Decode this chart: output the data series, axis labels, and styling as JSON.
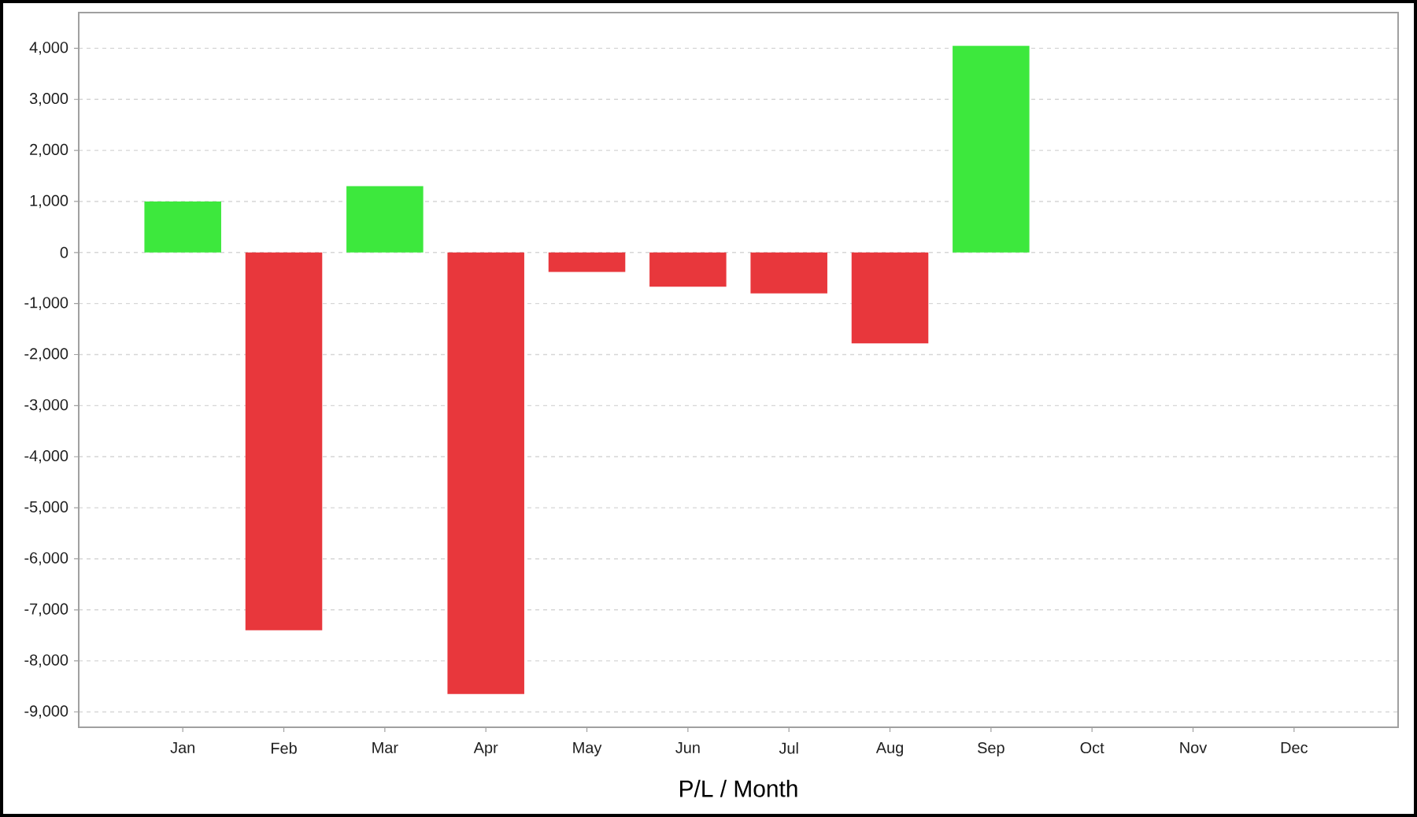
{
  "chart_data": {
    "type": "bar",
    "xlabel": "P/L / Month",
    "categories": [
      "Jan",
      "Feb",
      "Mar",
      "Apr",
      "May",
      "Jun",
      "Jul",
      "Aug",
      "Sep",
      "Oct",
      "Nov",
      "Dec"
    ],
    "values": [
      1000,
      -7400,
      1300,
      -8650,
      -380,
      -670,
      -800,
      -1780,
      4050,
      null,
      null,
      null
    ],
    "colors": [
      "#3de83d",
      "#e8373c",
      "#3de83d",
      "#e8373c",
      "#e8373c",
      "#e8373c",
      "#e8373c",
      "#e8373c",
      "#3de83d",
      null,
      null,
      null
    ],
    "ylim": [
      -9300,
      4700
    ],
    "yticks": [
      {
        "value": -9000,
        "label": "-9,000"
      },
      {
        "value": -8000,
        "label": "-8,000"
      },
      {
        "value": -7000,
        "label": "-7,000"
      },
      {
        "value": -6000,
        "label": "-6,000"
      },
      {
        "value": -5000,
        "label": "-5,000"
      },
      {
        "value": -4000,
        "label": "-4,000"
      },
      {
        "value": -3000,
        "label": "-3,000"
      },
      {
        "value": -2000,
        "label": "-2,000"
      },
      {
        "value": -1000,
        "label": "-1,000"
      },
      0,
      {
        "value": 1000,
        "label": "1,000"
      },
      {
        "value": 2000,
        "label": "2,000"
      },
      {
        "value": 3000,
        "label": "3,000"
      },
      {
        "value": 4000,
        "label": "4,000"
      }
    ],
    "grid": "y"
  }
}
